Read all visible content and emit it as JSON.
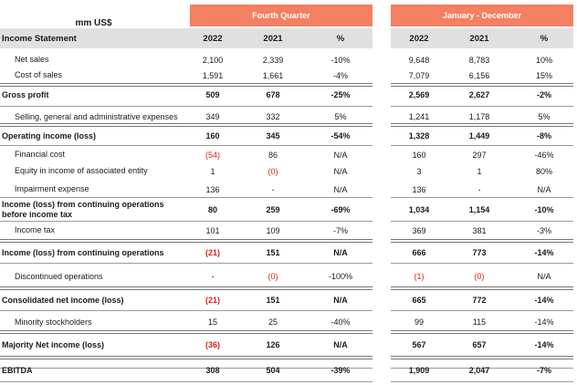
{
  "units_label": "mm US$",
  "groups": {
    "q4": "Fourth Quarter",
    "year": "January - December"
  },
  "statement_label": "Income Statement",
  "columns": [
    "2022",
    "2021",
    "%",
    "2022",
    "2021",
    "%"
  ],
  "rows": [
    {
      "label": "Net sales",
      "indent": true,
      "bold": false,
      "values": [
        "2,100",
        "2,339",
        "-10%",
        "9,648",
        "8,783",
        "10%"
      ],
      "neg": []
    },
    {
      "label": "Cost of sales",
      "indent": true,
      "bold": false,
      "values": [
        "1,591",
        "1,661",
        "-4%",
        "7,079",
        "6,156",
        "15%"
      ],
      "neg": []
    },
    {
      "label": "Gross profit",
      "indent": false,
      "bold": true,
      "values": [
        "509",
        "678",
        "-25%",
        "2,569",
        "2,627",
        "-2%"
      ],
      "neg": []
    },
    {
      "label": "Selling, general and administrative expenses",
      "indent": true,
      "bold": false,
      "values": [
        "349",
        "332",
        "5%",
        "1,241",
        "1,178",
        "5%"
      ],
      "neg": []
    },
    {
      "label": "Operating income (loss)",
      "indent": false,
      "bold": true,
      "values": [
        "160",
        "345",
        "-54%",
        "1,328",
        "1,449",
        "-8%"
      ],
      "neg": []
    },
    {
      "label": "Financial cost",
      "indent": true,
      "bold": false,
      "values": [
        "(54)",
        "86",
        "N/A",
        "160",
        "297",
        "-46%"
      ],
      "neg": [
        0
      ]
    },
    {
      "label": "Equity in income of associated entity",
      "indent": true,
      "bold": false,
      "values": [
        "1",
        "(0)",
        "N/A",
        "3",
        "1",
        "80%"
      ],
      "neg": [
        1
      ]
    },
    {
      "label": "Impairment expense",
      "indent": true,
      "bold": false,
      "values": [
        "136",
        "-",
        "N/A",
        "136",
        "-",
        "N/A"
      ],
      "neg": []
    },
    {
      "label": "Income (loss) from continuing operations before income tax",
      "indent": false,
      "bold": true,
      "values": [
        "80",
        "259",
        "-69%",
        "1,034",
        "1,154",
        "-10%"
      ],
      "neg": []
    },
    {
      "label": "Income tax",
      "indent": true,
      "bold": false,
      "values": [
        "101",
        "109",
        "-7%",
        "369",
        "381",
        "-3%"
      ],
      "neg": []
    },
    {
      "label": "Income (loss) from continuing operations",
      "indent": false,
      "bold": true,
      "values": [
        "(21)",
        "151",
        "N/A",
        "666",
        "773",
        "-14%"
      ],
      "neg": [
        0
      ]
    },
    {
      "label": "Discontinued operations",
      "indent": true,
      "bold": false,
      "values": [
        "-",
        "(0)",
        "-100%",
        "(1)",
        "(0)",
        "N/A"
      ],
      "neg": [
        1,
        3,
        4
      ]
    },
    {
      "label": "Consolidated net income (loss)",
      "indent": false,
      "bold": true,
      "values": [
        "(21)",
        "151",
        "N/A",
        "665",
        "772",
        "-14%"
      ],
      "neg": [
        0
      ]
    },
    {
      "label": "Minority stockholders",
      "indent": true,
      "bold": false,
      "values": [
        "15",
        "25",
        "-40%",
        "99",
        "115",
        "-14%"
      ],
      "neg": []
    },
    {
      "label": "Majority Net income (loss)",
      "indent": false,
      "bold": true,
      "values": [
        "(36)",
        "126",
        "N/A",
        "567",
        "657",
        "-14%"
      ],
      "neg": [
        0
      ]
    },
    {
      "label": "EBITDA",
      "indent": false,
      "bold": true,
      "values": [
        "308",
        "504",
        "-39%",
        "1,909",
        "2,047",
        "-7%"
      ],
      "neg": []
    }
  ]
}
